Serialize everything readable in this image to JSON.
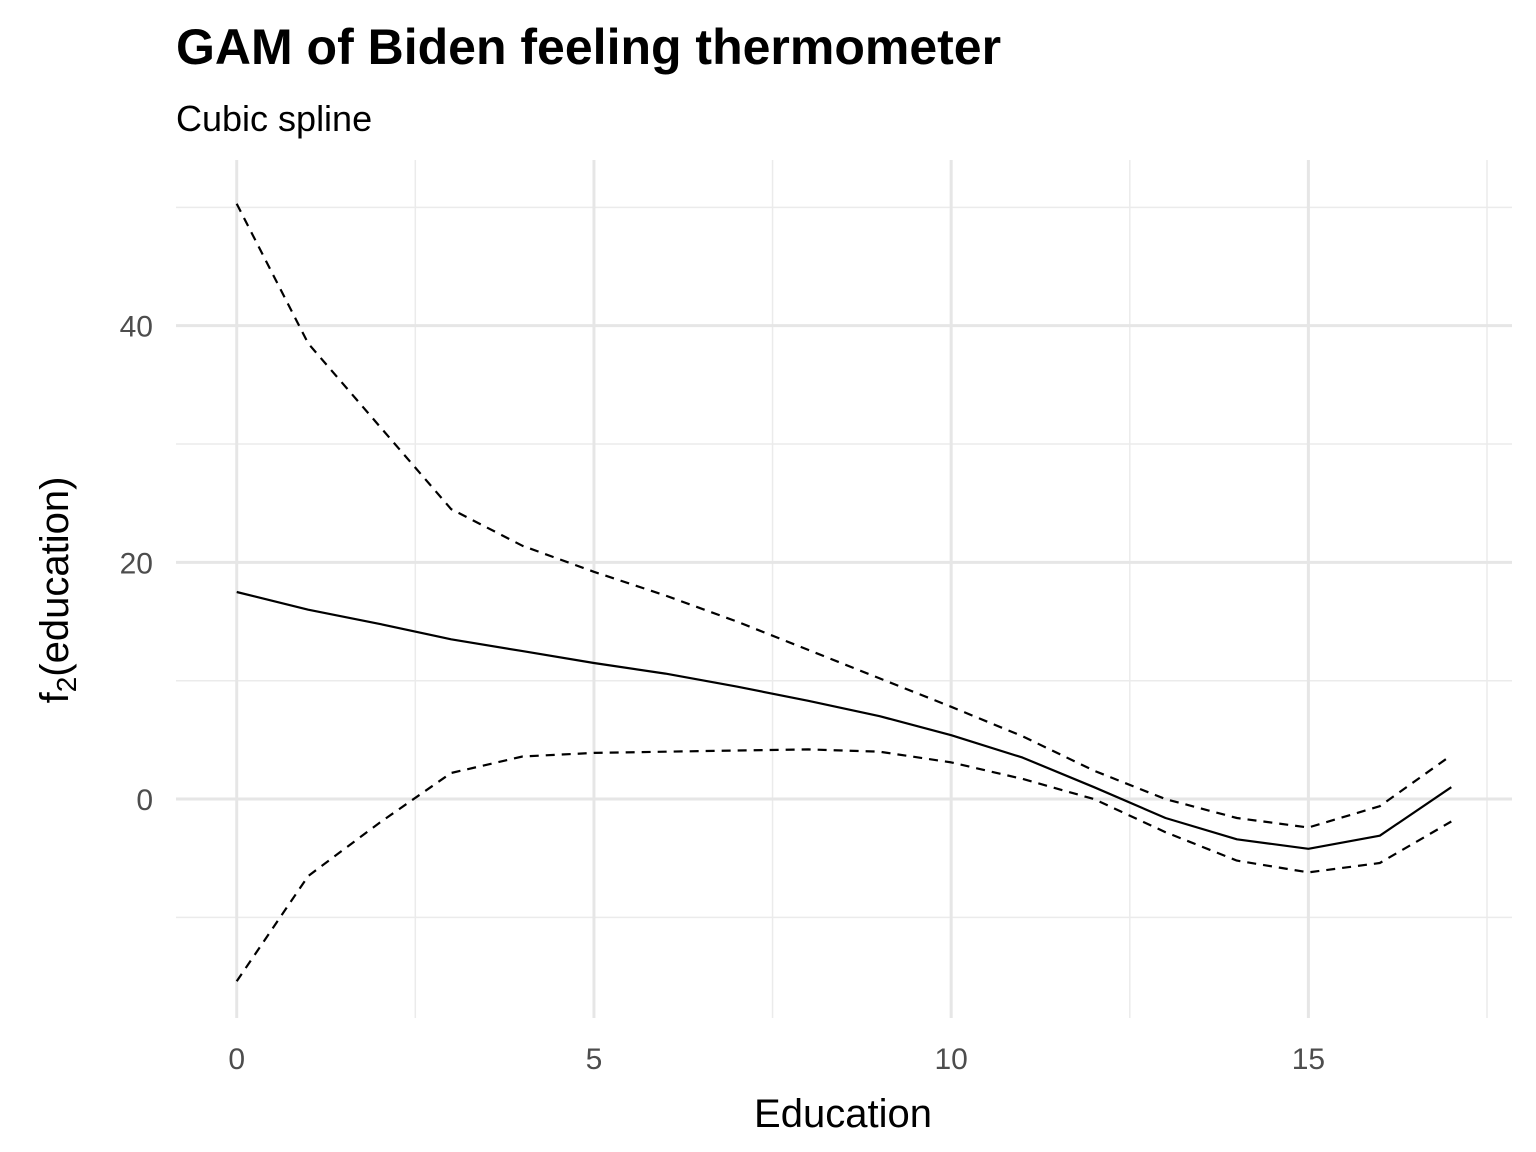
{
  "chart_data": {
    "type": "line",
    "title": "GAM of Biden feeling thermometer",
    "subtitle": "Cubic spline",
    "xlabel": "Education",
    "ylabel": {
      "base": "f",
      "sub": "2",
      "rest": "(education)"
    },
    "xlim": [
      -0.85,
      17.85
    ],
    "ylim": [
      -18.5,
      54
    ],
    "x_ticks": [
      0,
      5,
      10,
      15
    ],
    "x_minor": [
      2.5,
      7.5,
      12.5,
      17.5
    ],
    "y_ticks": [
      0,
      20,
      40
    ],
    "y_minor": [
      -10,
      10,
      30,
      50
    ],
    "grid": true,
    "legend": "none",
    "x": [
      0,
      1,
      2,
      3,
      4,
      5,
      6,
      7,
      8,
      9,
      10,
      11,
      12,
      13,
      14,
      15,
      16,
      17
    ],
    "series": [
      {
        "style": "solid",
        "values": [
          17.5,
          16.0,
          14.8,
          13.5,
          12.5,
          11.5,
          10.6,
          9.5,
          8.3,
          7.0,
          5.4,
          3.5,
          1.0,
          -1.6,
          -3.4,
          -4.2,
          -3.1,
          1.0
        ]
      },
      {
        "style": "dashed",
        "values": [
          50.3,
          38.5,
          31.5,
          24.5,
          21.4,
          19.2,
          17.2,
          15.0,
          12.6,
          10.2,
          7.8,
          5.3,
          2.4,
          0.0,
          -1.6,
          -2.4,
          -0.6,
          3.7
        ]
      },
      {
        "style": "dashed",
        "values": [
          -15.4,
          -6.5,
          -2.0,
          2.2,
          3.6,
          3.9,
          4.0,
          4.1,
          4.2,
          4.0,
          3.1,
          1.7,
          0.0,
          -2.8,
          -5.2,
          -6.2,
          -5.4,
          -1.9
        ]
      }
    ]
  }
}
